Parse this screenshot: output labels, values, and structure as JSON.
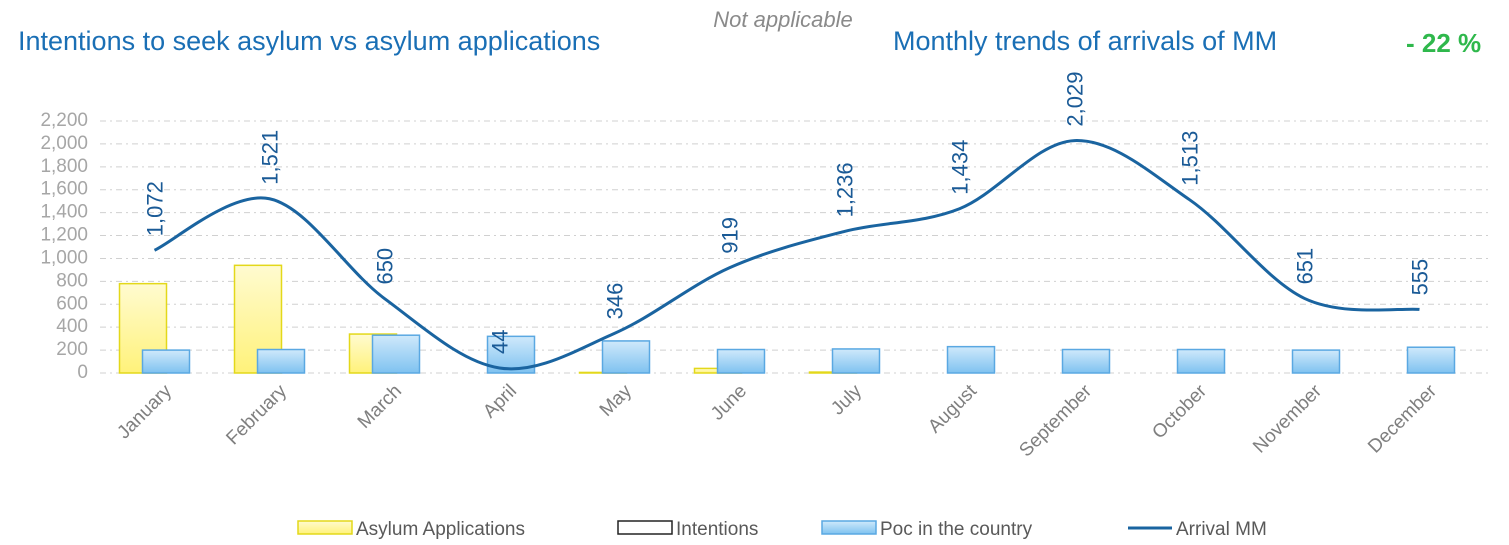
{
  "header": {
    "left_title": "Intentions to seek asylum vs asylum applications",
    "note": "Not applicable",
    "right_title": "Monthly trends of arrivals of MM",
    "change": "- 22 %"
  },
  "chart_data": {
    "type": "bar",
    "categories": [
      "January",
      "February",
      "March",
      "April",
      "May",
      "June",
      "July",
      "August",
      "September",
      "October",
      "November",
      "December"
    ],
    "series": [
      {
        "name": "Asylum Applications",
        "type": "bar",
        "color": "#fff59d",
        "values": [
          780,
          940,
          340,
          0,
          5,
          40,
          8,
          0,
          0,
          0,
          0,
          0
        ]
      },
      {
        "name": "Intentions",
        "type": "bar",
        "color": "#ffffff",
        "values": [
          0,
          0,
          0,
          0,
          0,
          0,
          0,
          0,
          0,
          0,
          0,
          0
        ]
      },
      {
        "name": "Poc in the country",
        "type": "bar",
        "color": "#9fd2f6",
        "values": [
          200,
          205,
          330,
          320,
          280,
          205,
          210,
          230,
          205,
          205,
          200,
          225
        ]
      },
      {
        "name": "Arrival MM",
        "type": "line",
        "color": "#1a64a0",
        "values": [
          1072,
          1521,
          650,
          44,
          346,
          919,
          1236,
          1434,
          2029,
          1513,
          651,
          555
        ],
        "value_labels": [
          "1,072",
          "1,521",
          "650",
          "44",
          "346",
          "919",
          "1,236",
          "1,434",
          "2,029",
          "1,513",
          "651",
          "555"
        ]
      }
    ],
    "ylim": [
      0,
      2200
    ],
    "yticks": [
      0,
      200,
      400,
      600,
      800,
      {
        "value": 1000,
        "label": "1,000"
      },
      {
        "value": 1200,
        "label": "1,200"
      },
      {
        "value": 1400,
        "label": "1,400"
      },
      {
        "value": 1600,
        "label": "1,600"
      },
      {
        "value": 1800,
        "label": "1,800"
      },
      {
        "value": 2000,
        "label": "2,000"
      },
      {
        "value": 2200,
        "label": "2,200"
      }
    ],
    "grid": true
  }
}
